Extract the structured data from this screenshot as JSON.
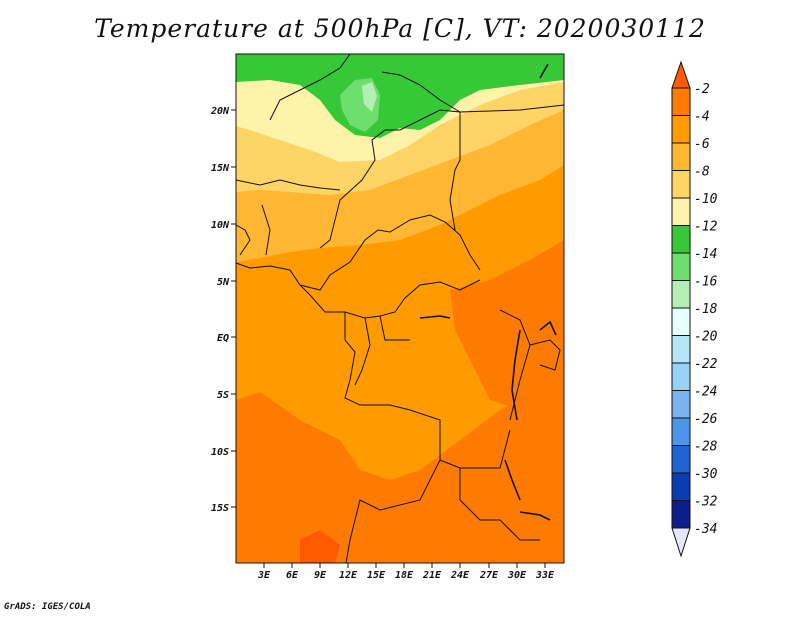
{
  "title": "Temperature at 500hPa [C], VT: 2020030112",
  "footer": "GrADS: IGES/COLA",
  "map": {
    "lat_labels": [
      "20N",
      "15N",
      "10N",
      "5N",
      "EQ",
      "5S",
      "10S",
      "15S"
    ],
    "lon_labels": [
      "3E",
      "6E",
      "9E",
      "12E",
      "15E",
      "18E",
      "21E",
      "24E",
      "27E",
      "30E",
      "33E"
    ]
  },
  "colorbar": {
    "labels": [
      "-2",
      "-4",
      "-6",
      "-8",
      "-10",
      "-12",
      "-14",
      "-16",
      "-18",
      "-20",
      "-22",
      "-24",
      "-26",
      "-28",
      "-30",
      "-32",
      "-34"
    ],
    "colors": [
      "#ff5a00",
      "#ff7a00",
      "#ff9a00",
      "#ffb632",
      "#ffd466",
      "#fff3aa",
      "#37c837",
      "#6ede6e",
      "#b4f0b4",
      "#e6ffff",
      "#b4e6f5",
      "#96d2fa",
      "#78b4f0",
      "#4b96e6",
      "#1e64d2",
      "#0a3cb4",
      "#0a1e8c",
      "#000064"
    ]
  },
  "field_colors": {
    "green_dark": "#37c837",
    "green_mid": "#6ede6e",
    "green_light": "#b4f0b4",
    "yellow_pale": "#fff3aa",
    "yellow": "#ffd466",
    "orange_light": "#ffb632",
    "orange": "#ff9a00",
    "orange_dark": "#ff7a00",
    "red_orange": "#ff5a00"
  }
}
